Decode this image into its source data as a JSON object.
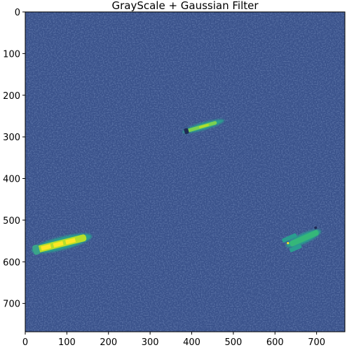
{
  "figure": {
    "title": "GrayScale + Gaussian Filter",
    "colormap": "viridis",
    "background_color": "#3a528b",
    "image_extent": {
      "x": [
        0,
        768
      ],
      "y": [
        0,
        768
      ]
    },
    "x_ticks": [
      "0",
      "100",
      "200",
      "300",
      "400",
      "500",
      "600",
      "700"
    ],
    "y_ticks": [
      "0",
      "100",
      "200",
      "300",
      "400",
      "500",
      "600",
      "700"
    ],
    "ship_colors": {
      "bright": "#d2e21b",
      "mid": "#7ad151",
      "teal": "#2a9d8f",
      "dark": "#1f2a55"
    }
  }
}
